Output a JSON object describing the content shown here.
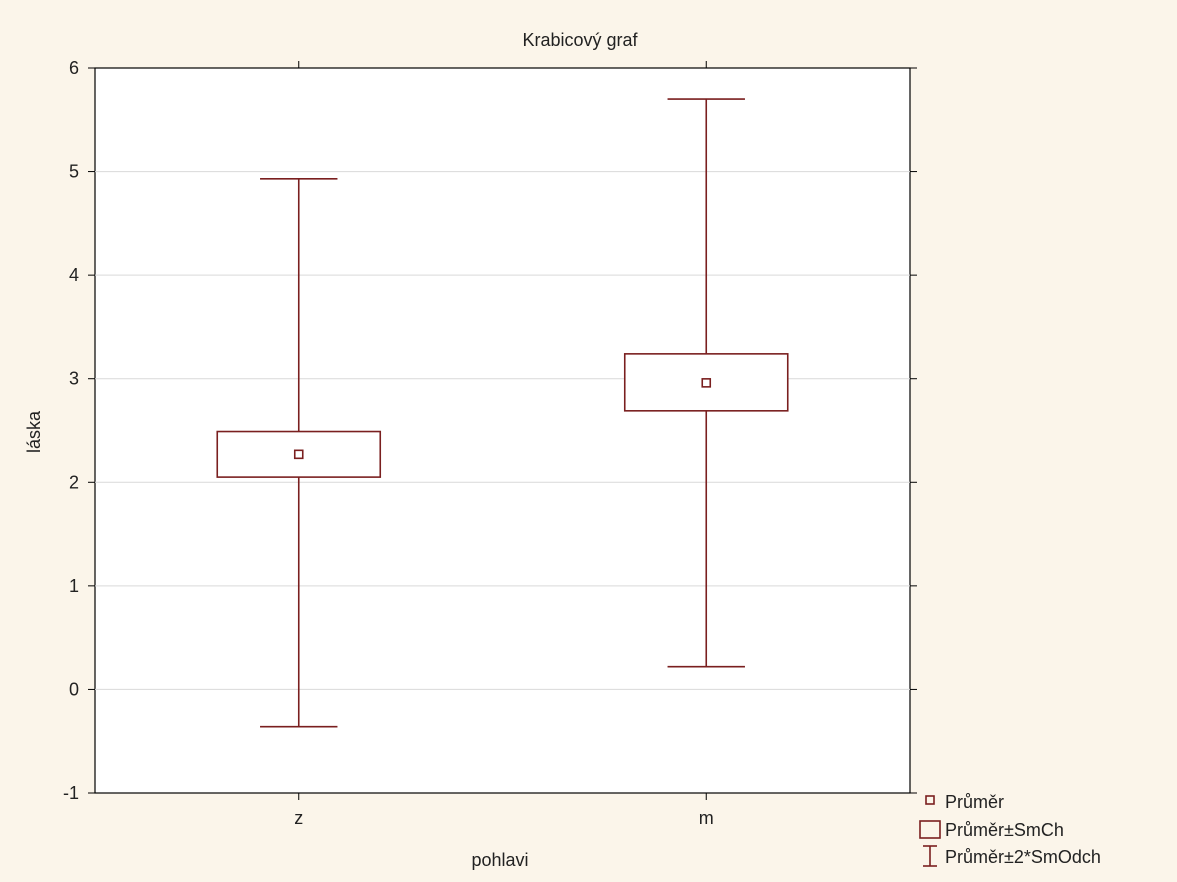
{
  "chart_data": {
    "type": "box",
    "title": "Krabicový graf",
    "xlabel": "pohlavi",
    "ylabel": "láska",
    "ylim": [
      -1,
      6
    ],
    "yticks": [
      -1,
      0,
      1,
      2,
      3,
      4,
      5,
      6
    ],
    "grid": true,
    "categories": [
      "z",
      "m"
    ],
    "groups": [
      {
        "category": "z",
        "mean": 2.27,
        "se_low": 2.05,
        "se_high": 2.49,
        "sd2_low": -0.36,
        "sd2_high": 4.93
      },
      {
        "category": "m",
        "mean": 2.96,
        "se_low": 2.69,
        "se_high": 3.24,
        "sd2_low": 0.22,
        "sd2_high": 5.7
      }
    ],
    "legend": {
      "placement": "bottom-right",
      "items": [
        {
          "label": "Průměr",
          "marker": "small-square"
        },
        {
          "label": "Průměr±SmCh",
          "marker": "box"
        },
        {
          "label": "Průměr±2*SmOdch",
          "marker": "whisker"
        }
      ]
    },
    "colors": {
      "background": "#fbf5ea",
      "plot_area": "#ffffff",
      "series": "#7a1f1f",
      "grid": "#d9d9d9",
      "axis": "#000000"
    }
  }
}
